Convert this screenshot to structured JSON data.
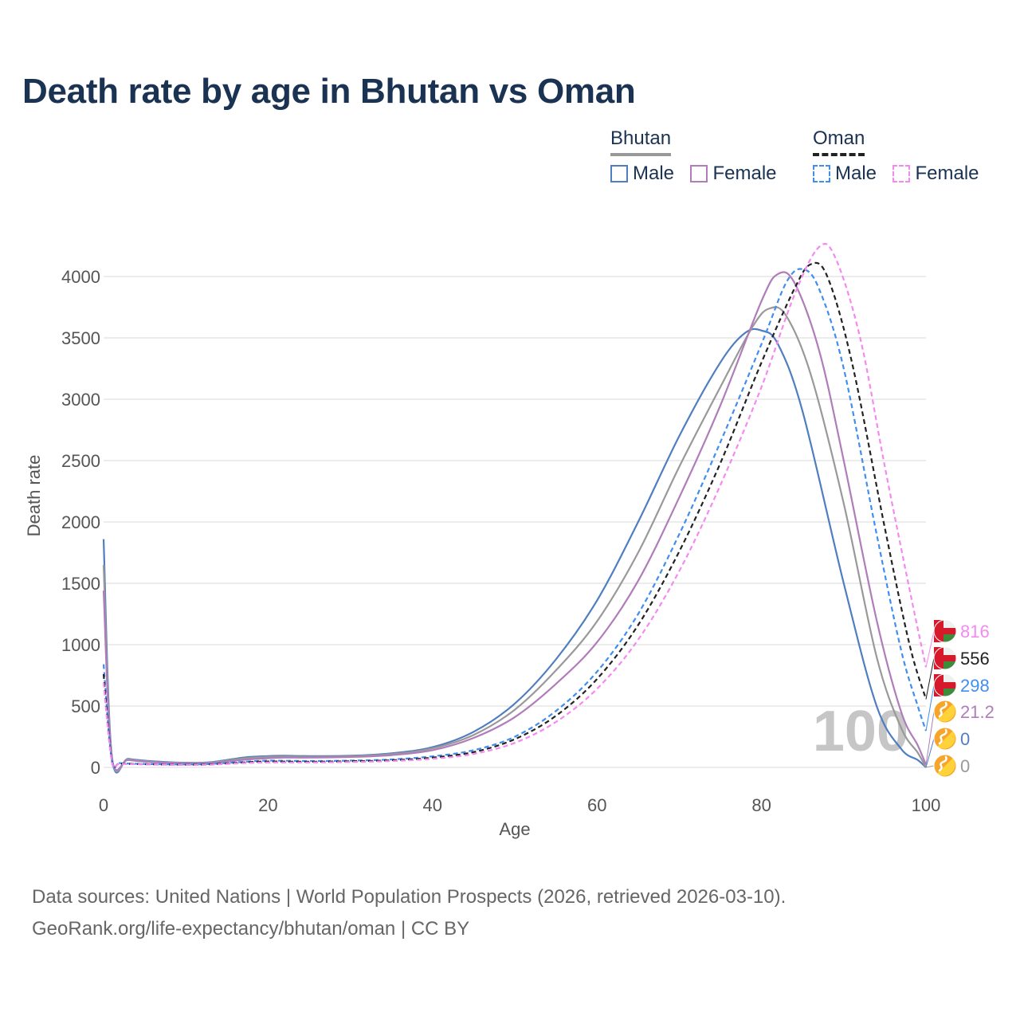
{
  "title": "Death rate by age in Bhutan vs Oman",
  "legend": {
    "groups": [
      {
        "country": "Bhutan",
        "items": [
          {
            "label": "Male",
            "color": "#4f7ec0",
            "dashed": false
          },
          {
            "label": "Female",
            "color": "#b07cba",
            "dashed": false
          }
        ]
      },
      {
        "country": "Oman",
        "items": [
          {
            "label": "Male",
            "color": "#3f8ef0",
            "dashed": true
          },
          {
            "label": "Female",
            "color": "#f589f0",
            "dashed": true
          }
        ]
      }
    ]
  },
  "current_age": "100",
  "source": {
    "line1": "Data sources: United Nations | World Population Prospects (2026, retrieved 2026-03-10).",
    "line2": "GeoRank.org/life-expectancy/bhutan/oman | CC BY"
  },
  "chart_data": {
    "type": "line",
    "title": "Death rate by age in Bhutan vs Oman",
    "xlabel": "Age",
    "ylabel": "Death rate",
    "xlim": [
      0,
      100
    ],
    "ylim": [
      0,
      4000
    ],
    "xticks": [
      0,
      20,
      40,
      60,
      80,
      100
    ],
    "yticks": [
      0,
      500,
      1000,
      1500,
      2000,
      2500,
      3000,
      3500,
      4000
    ],
    "grid": true,
    "series": [
      {
        "name": "Bhutan Male",
        "country": "Bhutan",
        "flag": "bhutan",
        "color": "#4f7ec0",
        "dashed": false,
        "end_label": "0",
        "points": [
          [
            0,
            1860
          ],
          [
            1,
            95
          ],
          [
            3,
            70
          ],
          [
            6,
            50
          ],
          [
            10,
            38
          ],
          [
            13,
            42
          ],
          [
            17,
            80
          ],
          [
            20,
            92
          ],
          [
            22,
            95
          ],
          [
            25,
            92
          ],
          [
            30,
            95
          ],
          [
            35,
            115
          ],
          [
            40,
            165
          ],
          [
            45,
            290
          ],
          [
            50,
            520
          ],
          [
            55,
            880
          ],
          [
            60,
            1360
          ],
          [
            65,
            2000
          ],
          [
            70,
            2700
          ],
          [
            75,
            3300
          ],
          [
            78,
            3540
          ],
          [
            80,
            3560
          ],
          [
            82,
            3450
          ],
          [
            85,
            2900
          ],
          [
            90,
            1500
          ],
          [
            94,
            500
          ],
          [
            97,
            150
          ],
          [
            99,
            60
          ],
          [
            100,
            0
          ]
        ]
      },
      {
        "name": "Bhutan Total",
        "country": "Bhutan",
        "flag": "bhutan",
        "color": "#999999",
        "dashed": false,
        "end_label": "0",
        "points": [
          [
            0,
            1650
          ],
          [
            1,
            90
          ],
          [
            3,
            65
          ],
          [
            6,
            45
          ],
          [
            10,
            35
          ],
          [
            13,
            38
          ],
          [
            17,
            72
          ],
          [
            20,
            85
          ],
          [
            22,
            88
          ],
          [
            25,
            86
          ],
          [
            30,
            90
          ],
          [
            35,
            108
          ],
          [
            40,
            155
          ],
          [
            45,
            265
          ],
          [
            50,
            470
          ],
          [
            55,
            790
          ],
          [
            60,
            1190
          ],
          [
            65,
            1750
          ],
          [
            70,
            2450
          ],
          [
            75,
            3100
          ],
          [
            79,
            3600
          ],
          [
            81,
            3740
          ],
          [
            83,
            3680
          ],
          [
            86,
            3200
          ],
          [
            90,
            2150
          ],
          [
            94,
            900
          ],
          [
            97,
            320
          ],
          [
            99,
            120
          ],
          [
            100,
            0
          ]
        ]
      },
      {
        "name": "Bhutan Female",
        "country": "Bhutan",
        "flag": "bhutan",
        "color": "#b07cba",
        "dashed": false,
        "end_label": "21.2",
        "points": [
          [
            0,
            1440
          ],
          [
            1,
            85
          ],
          [
            3,
            60
          ],
          [
            6,
            42
          ],
          [
            10,
            32
          ],
          [
            13,
            35
          ],
          [
            17,
            62
          ],
          [
            20,
            75
          ],
          [
            22,
            80
          ],
          [
            25,
            80
          ],
          [
            30,
            85
          ],
          [
            35,
            100
          ],
          [
            40,
            140
          ],
          [
            45,
            240
          ],
          [
            50,
            410
          ],
          [
            55,
            680
          ],
          [
            60,
            1020
          ],
          [
            65,
            1520
          ],
          [
            70,
            2200
          ],
          [
            75,
            2950
          ],
          [
            80,
            3800
          ],
          [
            82,
            4020
          ],
          [
            84,
            3950
          ],
          [
            87,
            3400
          ],
          [
            90,
            2500
          ],
          [
            94,
            1200
          ],
          [
            97,
            450
          ],
          [
            99,
            180
          ],
          [
            100,
            21.2
          ]
        ]
      },
      {
        "name": "Oman Male",
        "country": "Oman",
        "flag": "oman",
        "color": "#3f8ef0",
        "dashed": true,
        "end_label": "298",
        "points": [
          [
            0,
            840
          ],
          [
            1,
            60
          ],
          [
            2,
            35
          ],
          [
            5,
            28
          ],
          [
            10,
            24
          ],
          [
            13,
            28
          ],
          [
            17,
            45
          ],
          [
            20,
            55
          ],
          [
            25,
            52
          ],
          [
            30,
            55
          ],
          [
            35,
            65
          ],
          [
            40,
            90
          ],
          [
            45,
            140
          ],
          [
            50,
            250
          ],
          [
            55,
            460
          ],
          [
            60,
            780
          ],
          [
            65,
            1250
          ],
          [
            70,
            1900
          ],
          [
            75,
            2650
          ],
          [
            80,
            3450
          ],
          [
            83,
            3950
          ],
          [
            85,
            4060
          ],
          [
            87,
            3900
          ],
          [
            90,
            3250
          ],
          [
            94,
            1900
          ],
          [
            97,
            950
          ],
          [
            99,
            500
          ],
          [
            100,
            298
          ]
        ]
      },
      {
        "name": "Oman Total",
        "country": "Oman",
        "flag": "oman",
        "color": "#222222",
        "dashed": true,
        "end_label": "556",
        "points": [
          [
            0,
            760
          ],
          [
            1,
            55
          ],
          [
            2,
            32
          ],
          [
            5,
            26
          ],
          [
            10,
            22
          ],
          [
            13,
            25
          ],
          [
            17,
            40
          ],
          [
            20,
            48
          ],
          [
            25,
            46
          ],
          [
            30,
            50
          ],
          [
            35,
            58
          ],
          [
            40,
            80
          ],
          [
            45,
            125
          ],
          [
            50,
            230
          ],
          [
            55,
            420
          ],
          [
            60,
            720
          ],
          [
            65,
            1160
          ],
          [
            70,
            1760
          ],
          [
            75,
            2480
          ],
          [
            80,
            3300
          ],
          [
            84,
            3900
          ],
          [
            86,
            4100
          ],
          [
            88,
            4000
          ],
          [
            91,
            3300
          ],
          [
            95,
            1950
          ],
          [
            98,
            1000
          ],
          [
            100,
            556
          ]
        ]
      },
      {
        "name": "Oman Female",
        "country": "Oman",
        "flag": "oman",
        "color": "#f589f0",
        "dashed": true,
        "end_label": "816",
        "points": [
          [
            0,
            690
          ],
          [
            1,
            50
          ],
          [
            2,
            30
          ],
          [
            5,
            24
          ],
          [
            10,
            20
          ],
          [
            13,
            22
          ],
          [
            17,
            35
          ],
          [
            20,
            40
          ],
          [
            25,
            40
          ],
          [
            30,
            44
          ],
          [
            35,
            52
          ],
          [
            40,
            70
          ],
          [
            45,
            110
          ],
          [
            50,
            200
          ],
          [
            55,
            370
          ],
          [
            60,
            640
          ],
          [
            65,
            1040
          ],
          [
            70,
            1600
          ],
          [
            75,
            2300
          ],
          [
            80,
            3100
          ],
          [
            84,
            3850
          ],
          [
            87,
            4240
          ],
          [
            89,
            4150
          ],
          [
            92,
            3500
          ],
          [
            95,
            2450
          ],
          [
            98,
            1450
          ],
          [
            100,
            816
          ]
        ]
      }
    ]
  }
}
